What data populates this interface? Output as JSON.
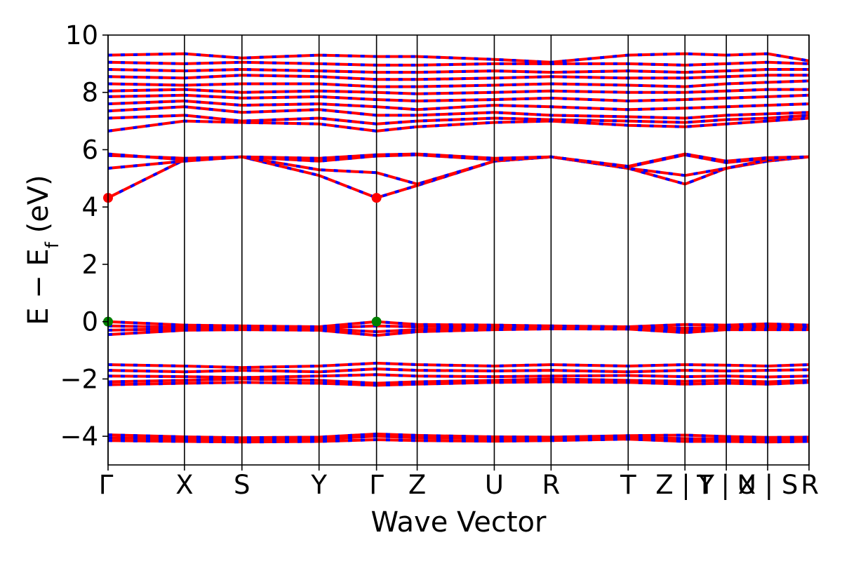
{
  "chart_data": {
    "type": "line",
    "title": "",
    "xlabel": "Wave Vector",
    "ylabel": "E − E",
    "ylabel_sub": "f",
    "ylabel_unit": " (eV)",
    "ylim": [
      -5,
      10
    ],
    "yticks": [
      -4,
      -2,
      0,
      2,
      4,
      6,
      8,
      10
    ],
    "ytick_labels": [
      "−4",
      "−2",
      "0",
      "2",
      "4",
      "6",
      "8",
      "10"
    ],
    "xlim": [
      0,
      1
    ],
    "kpoints": [
      {
        "x": 0.0,
        "label": "Γ"
      },
      {
        "x": 0.109,
        "label": "X"
      },
      {
        "x": 0.191,
        "label": "S"
      },
      {
        "x": 0.301,
        "label": "Y"
      },
      {
        "x": 0.383,
        "label": "Γ"
      },
      {
        "x": 0.441,
        "label": "Z"
      },
      {
        "x": 0.551,
        "label": "U"
      },
      {
        "x": 0.632,
        "label": "R"
      },
      {
        "x": 0.742,
        "label": "T"
      },
      {
        "x": 0.823,
        "label": "Z | Y"
      },
      {
        "x": 0.882,
        "label": "T | X"
      },
      {
        "x": 0.941,
        "label": "U | S"
      },
      {
        "x": 1.0,
        "label": "R"
      }
    ],
    "legend": "none",
    "grid": false,
    "series_colors": {
      "spin_up": "#ff0000",
      "spin_down": "#0000ff"
    },
    "markers": {
      "cbm": {
        "color": "#ff0000",
        "points": [
          {
            "x": 0.0,
            "y": 4.32
          },
          {
            "x": 0.383,
            "y": 4.32
          }
        ]
      },
      "vbm": {
        "color": "#008000",
        "points": [
          {
            "x": 0.0,
            "y": 0.0
          },
          {
            "x": 0.383,
            "y": 0.0
          }
        ]
      }
    },
    "bands": [
      {
        "group": "deep-valence",
        "y": [
          -3.95,
          -4.02,
          -4.05,
          -4.03,
          -3.92,
          -3.97,
          -4.02,
          -4.03,
          -3.98,
          -3.96,
          -4.01,
          -4.04,
          -4.03
        ]
      },
      {
        "group": "deep-valence",
        "y": [
          -4.05,
          -4.1,
          -4.12,
          -4.1,
          -4.0,
          -4.05,
          -4.08,
          -4.07,
          -4.04,
          -4.08,
          -4.1,
          -4.12,
          -4.1
        ]
      },
      {
        "group": "deep-valence",
        "y": [
          -4.15,
          -4.18,
          -4.2,
          -4.18,
          -4.12,
          -4.15,
          -4.17,
          -4.15,
          -4.1,
          -4.18,
          -4.18,
          -4.2,
          -4.18
        ]
      },
      {
        "group": "valence-2",
        "y": [
          -1.5,
          -1.55,
          -1.6,
          -1.55,
          -1.45,
          -1.5,
          -1.55,
          -1.5,
          -1.55,
          -1.5,
          -1.52,
          -1.55,
          -1.5
        ]
      },
      {
        "group": "valence-2",
        "y": [
          -1.7,
          -1.75,
          -1.7,
          -1.75,
          -1.65,
          -1.7,
          -1.72,
          -1.7,
          -1.75,
          -1.7,
          -1.72,
          -1.7,
          -1.68
        ]
      },
      {
        "group": "valence-2",
        "y": [
          -1.9,
          -1.92,
          -1.95,
          -1.9,
          -1.85,
          -1.9,
          -1.92,
          -1.9,
          -1.88,
          -1.92,
          -1.9,
          -1.93,
          -1.9
        ]
      },
      {
        "group": "valence-2",
        "y": [
          -2.1,
          -2.05,
          -2.0,
          -2.05,
          -2.15,
          -2.1,
          -2.05,
          -2.0,
          -2.05,
          -2.08,
          -2.05,
          -2.1,
          -2.05
        ]
      },
      {
        "group": "valence-2",
        "y": [
          -2.2,
          -2.15,
          -2.12,
          -2.15,
          -2.22,
          -2.18,
          -2.12,
          -2.1,
          -2.12,
          -2.18,
          -2.15,
          -2.18,
          -2.12
        ]
      },
      {
        "group": "valence-top",
        "y": [
          0.0,
          -0.12,
          -0.15,
          -0.18,
          0.0,
          -0.1,
          -0.12,
          -0.15,
          -0.18,
          -0.1,
          -0.12,
          -0.08,
          -0.12
        ]
      },
      {
        "group": "valence-top",
        "y": [
          -0.15,
          -0.2,
          -0.18,
          -0.22,
          -0.15,
          -0.18,
          -0.15,
          -0.2,
          -0.2,
          -0.22,
          -0.2,
          -0.15,
          -0.2
        ]
      },
      {
        "group": "valence-top",
        "y": [
          -0.3,
          -0.25,
          -0.22,
          -0.25,
          -0.35,
          -0.28,
          -0.22,
          -0.22,
          -0.22,
          -0.3,
          -0.25,
          -0.22,
          -0.25
        ]
      },
      {
        "group": "valence-top",
        "y": [
          -0.45,
          -0.3,
          -0.28,
          -0.3,
          -0.48,
          -0.35,
          -0.28,
          -0.25,
          -0.26,
          -0.38,
          -0.28,
          -0.28,
          -0.28
        ]
      },
      {
        "group": "conduction-low",
        "y": [
          4.32,
          5.65,
          5.75,
          5.1,
          4.32,
          4.75,
          5.6,
          5.75,
          5.35,
          4.8,
          5.35,
          5.6,
          5.75
        ]
      },
      {
        "group": "conduction-low",
        "y": [
          5.35,
          5.6,
          5.75,
          5.3,
          5.2,
          4.8,
          5.6,
          5.75,
          5.35,
          5.1,
          5.35,
          5.65,
          5.75
        ]
      },
      {
        "group": "conduction-low",
        "y": [
          5.8,
          5.7,
          5.75,
          5.6,
          5.78,
          5.82,
          5.65,
          5.75,
          5.4,
          5.82,
          5.55,
          5.7,
          5.75
        ]
      },
      {
        "group": "conduction-low",
        "y": [
          5.85,
          5.65,
          5.75,
          5.7,
          5.82,
          5.85,
          5.7,
          5.75,
          5.42,
          5.85,
          5.6,
          5.72,
          5.75
        ]
      },
      {
        "group": "conduction-high",
        "y": [
          6.65,
          7.0,
          6.95,
          6.9,
          6.65,
          6.8,
          6.95,
          7.0,
          6.85,
          6.8,
          6.9,
          7.0,
          7.1
        ]
      },
      {
        "group": "conduction-high",
        "y": [
          7.1,
          7.2,
          7.0,
          7.1,
          6.9,
          7.0,
          7.1,
          7.05,
          7.0,
          6.95,
          7.05,
          7.1,
          7.2
        ]
      },
      {
        "group": "conduction-high",
        "y": [
          7.35,
          7.5,
          7.3,
          7.4,
          7.2,
          7.2,
          7.3,
          7.2,
          7.15,
          7.1,
          7.2,
          7.25,
          7.3
        ]
      },
      {
        "group": "conduction-high",
        "y": [
          7.6,
          7.7,
          7.55,
          7.6,
          7.5,
          7.4,
          7.55,
          7.5,
          7.4,
          7.45,
          7.5,
          7.55,
          7.6
        ]
      },
      {
        "group": "conduction-high",
        "y": [
          7.85,
          7.9,
          7.8,
          7.85,
          7.75,
          7.7,
          7.75,
          7.8,
          7.7,
          7.75,
          7.8,
          7.85,
          7.9
        ]
      },
      {
        "group": "conduction-high",
        "y": [
          8.05,
          8.1,
          8.0,
          8.05,
          8.0,
          7.95,
          8.0,
          8.05,
          8.0,
          8.0,
          8.05,
          8.1,
          8.1
        ]
      },
      {
        "group": "conduction-high",
        "y": [
          8.3,
          8.25,
          8.3,
          8.3,
          8.2,
          8.2,
          8.25,
          8.3,
          8.25,
          8.2,
          8.3,
          8.35,
          8.4
        ]
      },
      {
        "group": "conduction-high",
        "y": [
          8.55,
          8.5,
          8.6,
          8.55,
          8.45,
          8.45,
          8.5,
          8.55,
          8.5,
          8.5,
          8.55,
          8.6,
          8.6
        ]
      },
      {
        "group": "conduction-high",
        "y": [
          8.8,
          8.75,
          8.8,
          8.75,
          8.7,
          8.7,
          8.75,
          8.7,
          8.75,
          8.7,
          8.75,
          8.8,
          8.8
        ]
      },
      {
        "group": "conduction-high",
        "y": [
          9.05,
          9.0,
          9.05,
          9.0,
          8.95,
          8.95,
          9.0,
          9.0,
          9.0,
          8.95,
          9.0,
          9.05,
          9.0
        ]
      },
      {
        "group": "conduction-high",
        "y": [
          9.3,
          9.35,
          9.2,
          9.3,
          9.25,
          9.25,
          9.15,
          9.05,
          9.3,
          9.35,
          9.3,
          9.35,
          9.1
        ]
      }
    ]
  }
}
